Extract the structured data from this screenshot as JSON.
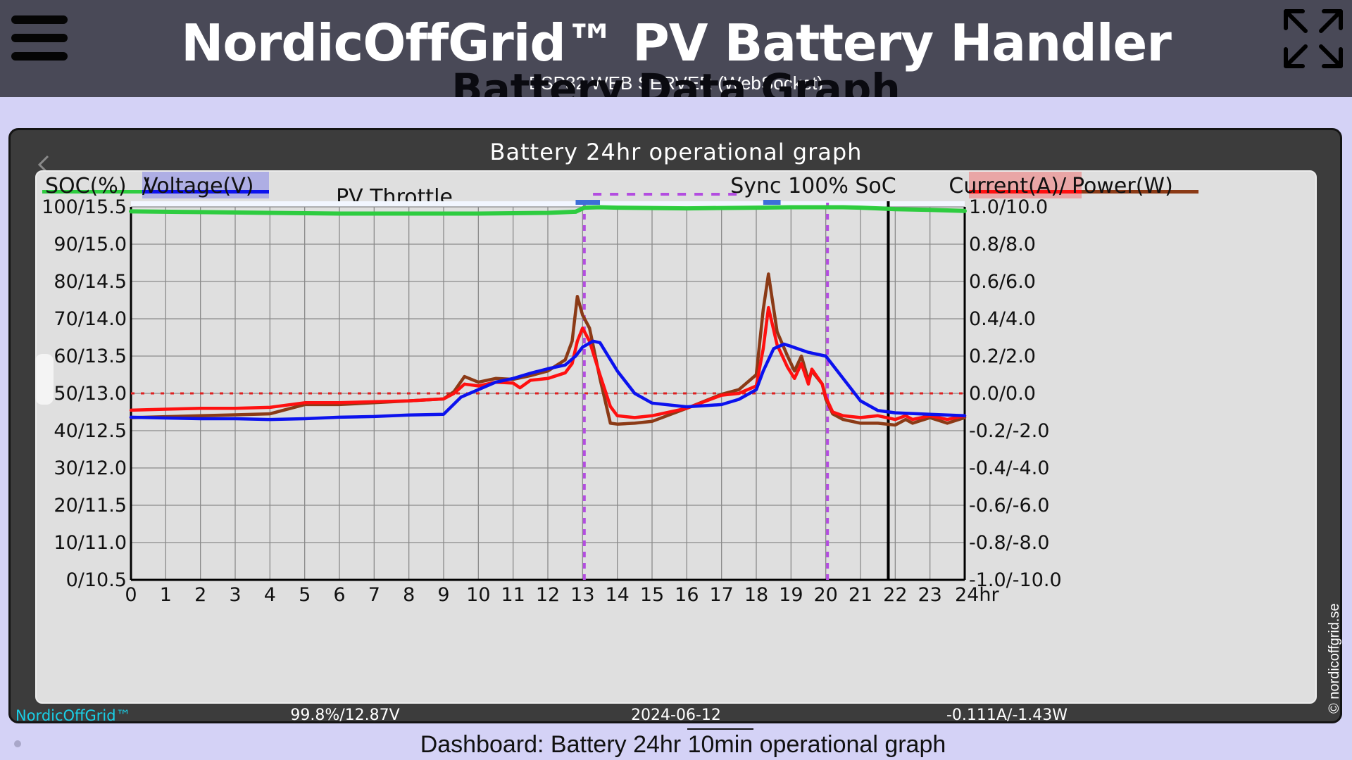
{
  "header": {
    "title": "NordicOffGrid™ PV Battery Handler",
    "subtitle": "ESP32 WEB SERVER (WebSocket)",
    "menu_icon": "hamburger-menu-icon",
    "fullscreen_icon": "expand-fullscreen-icon"
  },
  "page": {
    "section_title": "Battery Data Graph",
    "caption": "Dashboard: Battery 24hr 10min operational graph"
  },
  "footer": {
    "brand": "NordicOffGrid™",
    "soc_voltage": "99.8%/12.87V",
    "date": "2024-06-12",
    "current_power": "-0.111A/-1.43W"
  },
  "watermark": "© nordicoffgrid.se",
  "colors": {
    "soc": "#2ecc40",
    "voltage": "#0c12ee",
    "current": "#ff1010",
    "power": "#8b3a16",
    "sync_marker": "#b34de0",
    "zero_line": "#e02020",
    "header_bg": "#494957",
    "page_bg": "#d4d2f6",
    "throttle_marker": "#3c6fd8"
  },
  "chart_data": {
    "type": "line",
    "title": "Battery 24hr operational graph",
    "legend": {
      "soc": "SOC(%)",
      "sep_left": "/",
      "voltage": "Voltage(V)",
      "current": "Current(A)",
      "sep_right": "/",
      "power": "Power(W)"
    },
    "annotations": {
      "pv_throttle": "PV Throttle",
      "sync": "Sync 100% SoC"
    },
    "left_axis_ticks": [
      "100/15.5",
      "90/15.0",
      "80/14.5",
      "70/14.0",
      "60/13.5",
      "50/13.0",
      "40/12.5",
      "30/12.0",
      "20/11.5",
      "10/11.0",
      "0/10.5"
    ],
    "right_axis_ticks": [
      "1.0/10.0",
      "0.8/8.0",
      "0.6/6.0",
      "0.4/4.0",
      "0.2/2.0",
      "0.0/0.0",
      "-0.2/-2.0",
      "-0.4/-4.0",
      "-0.6/-6.0",
      "-0.8/-8.0",
      "-1.0/-10.0"
    ],
    "x_ticks": [
      "0",
      "1",
      "2",
      "3",
      "4",
      "5",
      "6",
      "7",
      "8",
      "9",
      "10",
      "11",
      "12",
      "13",
      "14",
      "15",
      "16",
      "17",
      "18",
      "19",
      "20",
      "21",
      "22",
      "23",
      "24hr"
    ],
    "x_range": [
      0,
      24
    ],
    "soc_range": [
      0,
      100
    ],
    "voltage_range": [
      10.5,
      15.5
    ],
    "current_range": [
      -1.0,
      1.0
    ],
    "power_range": [
      -10,
      10
    ],
    "sync_marker_hours": [
      13.05,
      20.05
    ],
    "sync_span_hours": [
      13.3,
      17.5
    ],
    "throttle_marks_hours": [
      [
        12.8,
        13.5
      ],
      [
        18.2,
        18.7
      ]
    ],
    "current_time_hour": 21.8,
    "series": [
      {
        "name": "SOC(%)",
        "axis": "soc",
        "x": [
          0,
          2,
          4,
          6,
          8,
          9,
          10,
          11,
          12,
          12.8,
          13.05,
          13.5,
          14,
          16,
          18,
          19,
          20,
          20.5,
          21,
          21.5,
          22,
          23,
          24
        ],
        "values": [
          98.8,
          98.6,
          98.4,
          98.2,
          98.2,
          98.2,
          98.2,
          98.3,
          98.4,
          98.7,
          99.8,
          99.9,
          99.8,
          99.6,
          99.8,
          99.9,
          99.9,
          99.9,
          99.8,
          99.6,
          99.4,
          99.2,
          98.9
        ]
      },
      {
        "name": "Voltage(V)",
        "axis": "voltage",
        "x": [
          0,
          1,
          2,
          3,
          4,
          5,
          6,
          7,
          8,
          9,
          9.5,
          10,
          10.5,
          11,
          11.5,
          12,
          12.5,
          12.8,
          13,
          13.3,
          13.5,
          14,
          14.5,
          15,
          16,
          17,
          17.5,
          18,
          18.2,
          18.5,
          18.8,
          19,
          19.5,
          20,
          20.5,
          21,
          21.5,
          22,
          23,
          24
        ],
        "values": [
          12.68,
          12.67,
          12.66,
          12.66,
          12.65,
          12.66,
          12.68,
          12.69,
          12.71,
          12.72,
          12.95,
          13.05,
          13.15,
          13.2,
          13.27,
          13.33,
          13.38,
          13.5,
          13.62,
          13.7,
          13.68,
          13.3,
          13.0,
          12.87,
          12.82,
          12.85,
          12.92,
          13.05,
          13.3,
          13.6,
          13.66,
          13.63,
          13.55,
          13.5,
          13.2,
          12.9,
          12.77,
          12.74,
          12.72,
          12.7
        ]
      },
      {
        "name": "Current(A)",
        "axis": "current",
        "x": [
          0,
          1,
          2,
          3,
          4,
          5,
          6,
          7,
          8,
          9,
          9.3,
          9.6,
          10,
          10.5,
          11,
          11.2,
          11.5,
          12,
          12.5,
          12.7,
          12.85,
          13,
          13.2,
          13.5,
          13.8,
          14,
          14.5,
          15,
          16,
          17,
          17.5,
          18,
          18.2,
          18.35,
          18.6,
          18.9,
          19.1,
          19.3,
          19.5,
          19.6,
          19.9,
          20,
          20.2,
          20.5,
          21,
          21.5,
          22,
          22.3,
          22.5,
          23,
          23.5,
          24
        ],
        "values": [
          -0.09,
          -0.085,
          -0.08,
          -0.08,
          -0.075,
          -0.05,
          -0.05,
          -0.045,
          -0.04,
          -0.03,
          0.0,
          0.05,
          0.04,
          0.06,
          0.055,
          0.03,
          0.07,
          0.08,
          0.11,
          0.16,
          0.28,
          0.35,
          0.28,
          0.1,
          -0.07,
          -0.12,
          -0.13,
          -0.12,
          -0.08,
          -0.01,
          0.0,
          0.04,
          0.24,
          0.46,
          0.26,
          0.14,
          0.08,
          0.16,
          0.05,
          0.13,
          0.05,
          -0.02,
          -0.1,
          -0.12,
          -0.13,
          -0.12,
          -0.14,
          -0.12,
          -0.14,
          -0.12,
          -0.14,
          -0.12
        ]
      },
      {
        "name": "Power(W)",
        "axis": "power",
        "x": [
          0,
          1,
          2,
          3,
          4,
          5,
          6,
          7,
          8,
          9,
          9.3,
          9.6,
          10,
          10.5,
          11,
          11.5,
          12,
          12.5,
          12.7,
          12.85,
          13,
          13.2,
          13.5,
          13.8,
          14,
          14.5,
          15,
          16,
          17,
          17.5,
          18,
          18.2,
          18.35,
          18.6,
          18.9,
          19.1,
          19.3,
          19.5,
          19.6,
          19.9,
          20,
          20.2,
          20.5,
          21,
          21.5,
          22,
          22.3,
          22.5,
          23,
          23.5,
          24
        ],
        "values": [
          -1.3,
          -1.25,
          -1.2,
          -1.15,
          -1.1,
          -0.6,
          -0.6,
          -0.5,
          -0.4,
          -0.3,
          0.1,
          0.9,
          0.6,
          0.8,
          0.75,
          0.95,
          1.2,
          1.8,
          2.8,
          5.2,
          4.2,
          3.5,
          0.8,
          -1.6,
          -1.65,
          -1.6,
          -1.5,
          -0.8,
          -0.05,
          0.2,
          1.0,
          4.5,
          6.4,
          3.3,
          2.0,
          1.2,
          2.0,
          0.7,
          1.2,
          0.5,
          -0.3,
          -1.1,
          -1.4,
          -1.6,
          -1.6,
          -1.7,
          -1.4,
          -1.6,
          -1.3,
          -1.6,
          -1.3
        ]
      }
    ]
  }
}
